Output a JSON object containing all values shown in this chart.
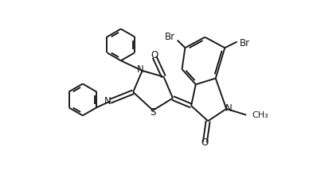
{
  "bg_color": "#ffffff",
  "line_color": "#1a1a1a",
  "line_width": 1.4,
  "font_size": 8.5,
  "figsize": [
    3.88,
    2.24
  ],
  "dpi": 100,
  "xlim": [
    0,
    10
  ],
  "ylim": [
    0,
    5.8
  ]
}
